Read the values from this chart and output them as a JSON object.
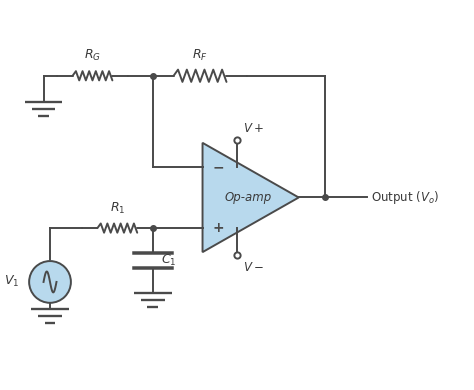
{
  "bg_color": "#ffffff",
  "line_color": "#4a4a4a",
  "op_amp_fill": "#b8d9ed",
  "text_color": "#3a3a3a",
  "source_fill": "#b8d9ed",
  "figsize": [
    4.74,
    3.9
  ],
  "dpi": 100,
  "xlim": [
    0,
    9.5
  ],
  "ylim": [
    0,
    7.8
  ],
  "lw": 1.4,
  "rg_label": "$R_G$",
  "rf_label": "$R_F$",
  "r1_label": "$R_1$",
  "c1_label": "$C_1$",
  "vplus_label": "$V+$",
  "vminus_label": "$V-$",
  "v1_label": "$V_1$",
  "opamp_label": "Op-amp",
  "output_label": "Output $(V_o)$"
}
